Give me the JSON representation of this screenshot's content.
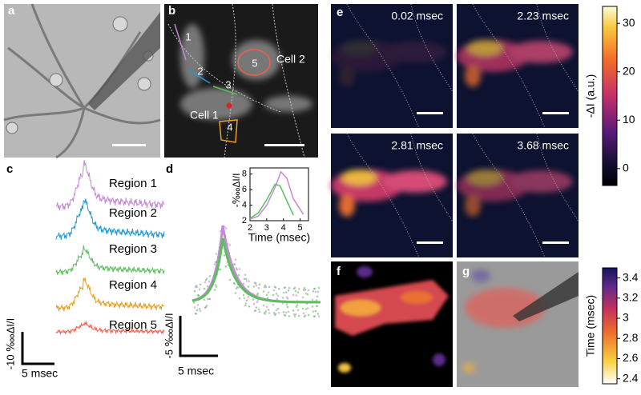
{
  "panel_labels": [
    "a",
    "b",
    "c",
    "d",
    "e",
    "f",
    "g"
  ],
  "panel_b": {
    "regions": [
      "1",
      "2",
      "3",
      "4",
      "5"
    ],
    "cells": [
      "Cell 2",
      "Cell 1"
    ]
  },
  "panel_c": {
    "traces": [
      "Region 1",
      "Region 2",
      "Region 3",
      "Region 4",
      "Region 5"
    ],
    "colors": [
      "#c58ad6",
      "#1f9bd7",
      "#5cbf5c",
      "#e6a024",
      "#f0604c"
    ],
    "scale_y": "-10 ‱ΔI/I",
    "scale_x": "5 msec"
  },
  "panel_d": {
    "scale_y": "-5 ‱ΔI/I",
    "scale_x": "5 msec",
    "inset": {
      "xlabel": "Time (msec)",
      "ylabel": "-‱ΔI/I",
      "xlim": [
        2,
        5.5
      ],
      "ylim": [
        2,
        8.8
      ],
      "xticks": [
        2,
        3,
        4,
        5
      ],
      "yticks": [
        2,
        4,
        6,
        8
      ],
      "series": [
        {
          "color": "#c58ad6",
          "x": [
            2,
            2.5,
            3,
            3.5,
            3.85,
            4.2,
            4.6,
            5.2
          ],
          "values": [
            2.2,
            2.6,
            4,
            6.3,
            8.3,
            7.5,
            4.8,
            2.8
          ]
        },
        {
          "color": "#5cbf5c",
          "x": [
            2,
            2.5,
            3,
            3.5,
            3.8,
            4.2,
            4.6
          ],
          "values": [
            2.3,
            3,
            4.7,
            6.7,
            6.5,
            4.6,
            2.7
          ]
        }
      ]
    }
  },
  "panel_e": {
    "times": [
      "0.02 msec",
      "2.23 msec",
      "2.81 msec",
      "3.68 msec"
    ],
    "colorbar": {
      "label": "-ΔI (a.u.)",
      "lim": [
        -3.5,
        33.5
      ],
      "ticks": [
        0,
        10,
        20,
        30
      ]
    }
  },
  "panel_g": {
    "colorbar": {
      "label": "Time (msec)",
      "lim": [
        2.35,
        3.5
      ],
      "ticks": [
        2.4,
        2.6,
        2.8,
        3,
        3.2,
        3.4
      ]
    }
  }
}
